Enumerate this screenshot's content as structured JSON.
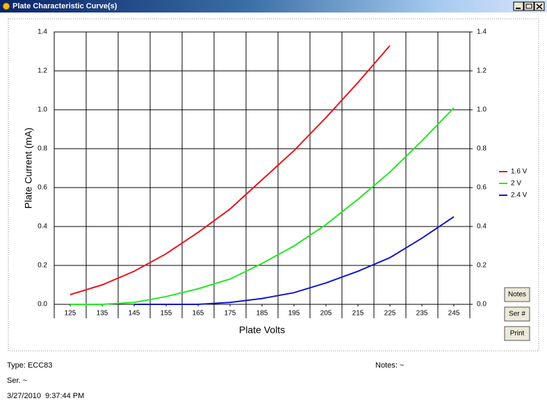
{
  "window": {
    "title": "Plate Characteristic Curve(s)"
  },
  "chart_data": {
    "type": "line",
    "y_label": "Plate Current (mA)",
    "x_label": "Plate Volts",
    "x": [
      125,
      135,
      145,
      155,
      165,
      175,
      185,
      195,
      205,
      215,
      225,
      235,
      245
    ],
    "xlim": [
      120,
      250
    ],
    "xticks": [
      125,
      135,
      145,
      155,
      165,
      175,
      185,
      195,
      205,
      215,
      225,
      235,
      245
    ],
    "ylim": [
      0,
      1.4
    ],
    "yticks": [
      {
        "value": 0,
        "label": "0.0"
      },
      0.2,
      0.4,
      0.6,
      0.8,
      {
        "value": 1,
        "label": "1.0"
      },
      1.2,
      1.4
    ],
    "y2lim": [
      0,
      1.4
    ],
    "y2ticks": [
      {
        "value": 0,
        "label": "0.0"
      },
      0.2,
      0.4,
      0.6,
      0.8,
      {
        "value": 1,
        "label": "1.0"
      },
      1.2,
      1.4
    ],
    "grid": true,
    "legend": "right",
    "series": [
      {
        "name": "1.6 V",
        "color": "#e8141c",
        "values": [
          0.05,
          0.1,
          0.17,
          0.26,
          0.37,
          0.49,
          0.64,
          0.79,
          0.96,
          1.14,
          1.33,
          null,
          null
        ]
      },
      {
        "name": "2 V",
        "color": "#22e822",
        "values": [
          0,
          0,
          0.01,
          0.04,
          0.08,
          0.13,
          0.21,
          0.3,
          0.41,
          0.54,
          0.68,
          0.84,
          1.01
        ]
      },
      {
        "name": "2.4 V",
        "color": "#1414c8",
        "values": [
          null,
          null,
          0,
          0,
          0,
          0.01,
          0.03,
          0.06,
          0.11,
          0.17,
          0.24,
          0.34,
          0.45
        ]
      }
    ]
  },
  "buttons": [
    "Notes",
    "Ser #",
    "Print"
  ],
  "info": {
    "type": "Type: ECC83",
    "notes": "Notes: ~",
    "serial": "Ser. ~",
    "timestamp": "3/27/2010  9:37:44 PM"
  }
}
